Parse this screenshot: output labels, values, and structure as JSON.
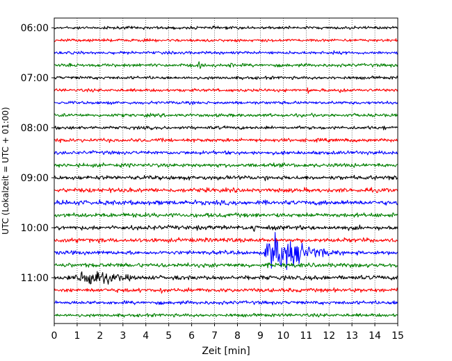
{
  "chart_data": {
    "type": "line",
    "title": "",
    "xlabel": "Zeit  [min]",
    "ylabel": "UTC (Lokalzeit = UTC + 01:00)",
    "xlim": [
      0,
      15
    ],
    "x_ticks": [
      0,
      1,
      2,
      3,
      4,
      5,
      6,
      7,
      8,
      9,
      10,
      11,
      12,
      13,
      14,
      15
    ],
    "x_tick_labels": [
      "0",
      "1",
      "2",
      "3",
      "4",
      "5",
      "6",
      "7",
      "8",
      "9",
      "10",
      "11",
      "12",
      "13",
      "14",
      "15"
    ],
    "grid": "vertical dotted",
    "legend": "none",
    "trace_colors": [
      "#000000",
      "#ff0000",
      "#0000ff",
      "#008000"
    ],
    "rows": [
      {
        "time": "06:00",
        "label": "06:00",
        "color": "#000000",
        "noise": 0.28,
        "events": []
      },
      {
        "time": "06:15",
        "label": "",
        "color": "#ff0000",
        "noise": 0.28,
        "events": []
      },
      {
        "time": "06:30",
        "label": "",
        "color": "#0000ff",
        "noise": 0.28,
        "events": [
          {
            "t": 11.9,
            "amp": 0.6,
            "dur": 0.8
          }
        ]
      },
      {
        "time": "06:45",
        "label": "",
        "color": "#008000",
        "noise": 0.32,
        "events": [
          {
            "t": 6.2,
            "amp": 0.7,
            "dur": 0.5
          },
          {
            "t": 7.5,
            "amp": 0.8,
            "dur": 0.5
          }
        ]
      },
      {
        "time": "07:00",
        "label": "07:00",
        "color": "#000000",
        "noise": 0.3,
        "events": [
          {
            "t": 14.9,
            "amp": 0.9,
            "dur": 0.1
          }
        ]
      },
      {
        "time": "07:15",
        "label": "",
        "color": "#ff0000",
        "noise": 0.3,
        "events": [
          {
            "t": 11.0,
            "amp": 1.0,
            "dur": 0.2
          },
          {
            "t": 12.3,
            "amp": 0.7,
            "dur": 0.7
          }
        ]
      },
      {
        "time": "07:30",
        "label": "",
        "color": "#0000ff",
        "noise": 0.3,
        "events": []
      },
      {
        "time": "07:45",
        "label": "",
        "color": "#008000",
        "noise": 0.32,
        "events": []
      },
      {
        "time": "08:00",
        "label": "08:00",
        "color": "#000000",
        "noise": 0.32,
        "events": [
          {
            "t": 14.3,
            "amp": 0.6,
            "dur": 0.4
          }
        ]
      },
      {
        "time": "08:15",
        "label": "",
        "color": "#ff0000",
        "noise": 0.35,
        "events": []
      },
      {
        "time": "08:30",
        "label": "",
        "color": "#0000ff",
        "noise": 0.35,
        "events": []
      },
      {
        "time": "08:45",
        "label": "",
        "color": "#008000",
        "noise": 0.38,
        "events": [
          {
            "t": 7.6,
            "amp": 0.6,
            "dur": 0.5
          }
        ]
      },
      {
        "time": "09:00",
        "label": "09:00",
        "color": "#000000",
        "noise": 0.4,
        "events": [
          {
            "t": 9.1,
            "amp": 0.7,
            "dur": 0.6
          }
        ]
      },
      {
        "time": "09:15",
        "label": "",
        "color": "#ff0000",
        "noise": 0.42,
        "events": []
      },
      {
        "time": "09:30",
        "label": "",
        "color": "#0000ff",
        "noise": 0.45,
        "events": [
          {
            "t": 0.3,
            "amp": 0.8,
            "dur": 0.5
          },
          {
            "t": 11.4,
            "amp": 0.6,
            "dur": 1.0
          }
        ]
      },
      {
        "time": "09:45",
        "label": "",
        "color": "#008000",
        "noise": 0.42,
        "events": [
          {
            "t": 2.1,
            "amp": 0.6,
            "dur": 0.5
          }
        ]
      },
      {
        "time": "10:00",
        "label": "10:00",
        "color": "#000000",
        "noise": 0.42,
        "events": [
          {
            "t": 8.5,
            "amp": 0.9,
            "dur": 0.8
          }
        ]
      },
      {
        "time": "10:15",
        "label": "",
        "color": "#ff0000",
        "noise": 0.42,
        "events": []
      },
      {
        "time": "10:30",
        "label": "",
        "color": "#0000ff",
        "noise": 0.38,
        "events": [
          {
            "t": 9.1,
            "amp": 4.6,
            "dur": 2.2
          }
        ]
      },
      {
        "time": "10:45",
        "label": "",
        "color": "#008000",
        "noise": 0.42,
        "events": []
      },
      {
        "time": "11:00",
        "label": "11:00",
        "color": "#000000",
        "noise": 0.42,
        "events": [
          {
            "t": 0.8,
            "amp": 2.2,
            "dur": 2.4
          }
        ]
      },
      {
        "time": "11:15",
        "label": "",
        "color": "#ff0000",
        "noise": 0.38,
        "events": [
          {
            "t": 4.6,
            "amp": 0.7,
            "dur": 0.3
          }
        ]
      },
      {
        "time": "11:30",
        "label": "",
        "color": "#0000ff",
        "noise": 0.35,
        "events": [
          {
            "t": 14.8,
            "amp": 0.6,
            "dur": 0.2
          }
        ]
      },
      {
        "time": "11:45",
        "label": "",
        "color": "#008000",
        "noise": 0.32,
        "events": []
      }
    ]
  }
}
